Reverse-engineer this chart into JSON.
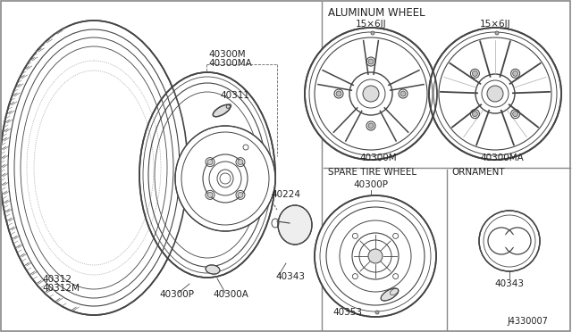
{
  "bg_color": "#ffffff",
  "line_color": "#444444",
  "text_color": "#222222",
  "parts": {
    "tire_label": "40312\n40312M",
    "wheel_labels": "40300M\n40300MA",
    "valve_label": "40311",
    "hub_cap_label": "40224",
    "spare_left_label": "40300P",
    "center_cap_label": "40300A",
    "ornament_left_label": "40343",
    "alum_wheel1_label": "40300M",
    "alum_wheel2_label": "40300MA",
    "alum_wheel1_size": "15×6JJ",
    "alum_wheel2_size": "15×6JJ",
    "spare_wheel_label": "40300P",
    "spare_part2_label": "40353",
    "ornament_part_label": "40343",
    "diagram_code": "J4330007",
    "section_alum": "ALUMINUM WHEEL",
    "section_spare": "SPARE TIRE WHEEL",
    "section_ornament": "ORNAMENT"
  }
}
